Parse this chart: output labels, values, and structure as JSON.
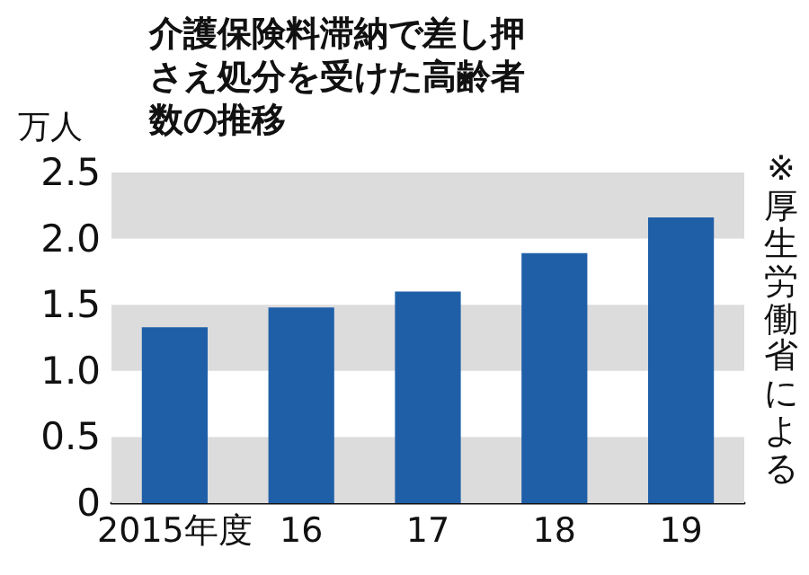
{
  "chart_data": {
    "type": "bar",
    "title": "介護保険料滞納で差し押さえ処分を受けた高齢者数の推移",
    "ylabel": "万人",
    "annotations": [
      "※厚生労働省による"
    ],
    "categories": [
      "2015年度",
      "16",
      "17",
      "18",
      "19"
    ],
    "values": [
      1.33,
      1.48,
      1.6,
      1.89,
      2.16
    ],
    "color": "#1f5fa8",
    "ylim": [
      0,
      2.5
    ],
    "yticks": [
      0,
      0.5,
      {
        "value": 1,
        "label": "1.0"
      },
      1.5,
      {
        "value": 2,
        "label": "2.0"
      },
      2.5
    ],
    "bands": [
      {
        "axis": "y",
        "from": 0,
        "to": 0.5,
        "color": "#dcdcdc"
      },
      {
        "axis": "y",
        "from": 1,
        "to": 1.5,
        "color": "#dcdcdc"
      },
      {
        "axis": "y",
        "from": 2,
        "to": 2.5,
        "color": "#dcdcdc"
      }
    ],
    "grid": false
  }
}
